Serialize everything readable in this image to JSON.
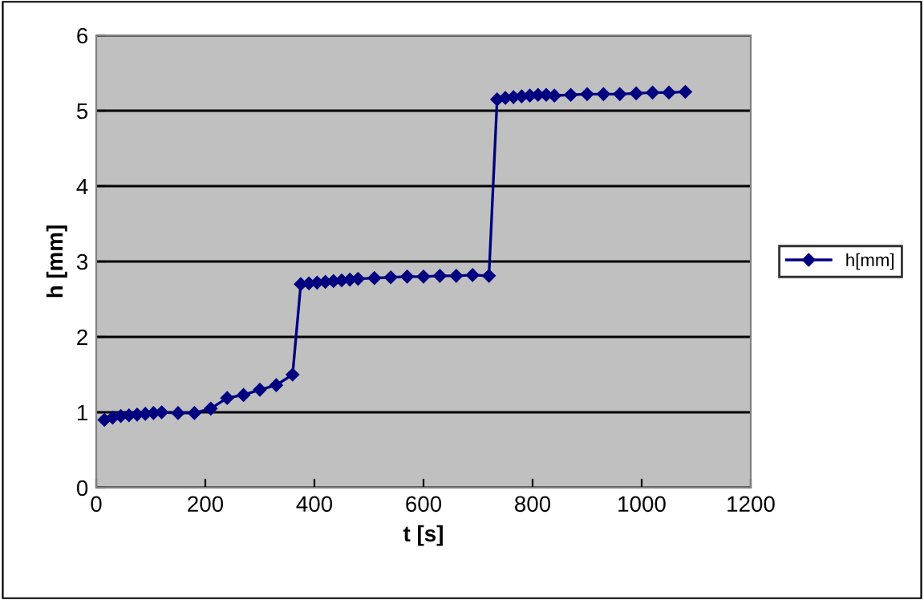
{
  "chart_data": {
    "type": "line",
    "xlabel": "t [s]",
    "ylabel": "h [mm]",
    "x": [
      15,
      30,
      45,
      60,
      75,
      90,
      105,
      120,
      150,
      180,
      210,
      240,
      270,
      300,
      330,
      360,
      375,
      390,
      405,
      420,
      435,
      450,
      465,
      480,
      510,
      540,
      570,
      600,
      630,
      660,
      690,
      720,
      735,
      750,
      765,
      780,
      795,
      810,
      825,
      840,
      870,
      900,
      930,
      960,
      990,
      1020,
      1050,
      1080
    ],
    "series": [
      {
        "name": "h[mm]",
        "color": "#000080",
        "values": [
          0.9,
          0.93,
          0.95,
          0.96,
          0.97,
          0.98,
          0.99,
          1.0,
          0.99,
          0.99,
          1.05,
          1.19,
          1.23,
          1.3,
          1.36,
          1.5,
          2.7,
          2.71,
          2.72,
          2.73,
          2.74,
          2.75,
          2.76,
          2.77,
          2.78,
          2.79,
          2.8,
          2.8,
          2.81,
          2.81,
          2.82,
          2.81,
          5.15,
          5.17,
          5.18,
          5.19,
          5.2,
          5.21,
          5.21,
          5.2,
          5.21,
          5.22,
          5.22,
          5.22,
          5.23,
          5.24,
          5.24,
          5.25
        ]
      }
    ],
    "xlim": [
      0,
      1200
    ],
    "xticks": [
      0,
      200,
      400,
      600,
      800,
      1000,
      1200
    ],
    "ylim": [
      0,
      6
    ],
    "yticks": [
      0,
      1,
      2,
      3,
      4,
      5,
      6
    ],
    "grid": "y",
    "legend": "right",
    "marker": "diamond",
    "line_style": "solid"
  }
}
